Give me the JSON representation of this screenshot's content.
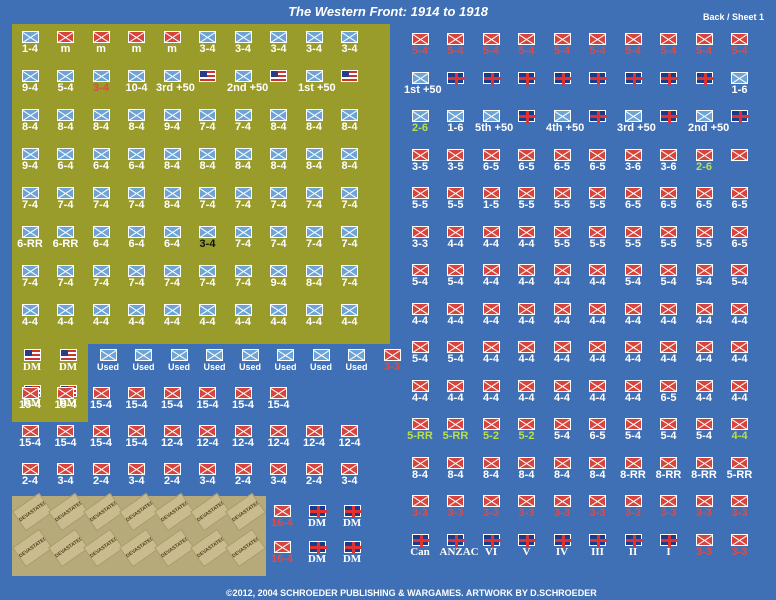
{
  "header": {
    "title": "The Western Front: 1914 to 1918",
    "sheet": "Back / Sheet 1"
  },
  "footer": {
    "credit": "©2012, 2004 SCHROEDER PUBLISHING & WARGAMES.  ARTWORK BY D.SCHROEDER"
  },
  "olive_rows": [
    [
      "1-4",
      "m",
      "m",
      "m",
      "m",
      "3-4",
      "3-4",
      "3-4",
      "3-4",
      "3-4"
    ],
    [
      "9-4",
      "5-4",
      "3-4",
      "10-4",
      "3rd +50",
      "",
      "2nd +50",
      "",
      "1st +50",
      ""
    ],
    [
      "8-4",
      "8-4",
      "8-4",
      "8-4",
      "9-4",
      "7-4",
      "7-4",
      "8-4",
      "8-4",
      "8-4"
    ],
    [
      "9-4",
      "6-4",
      "6-4",
      "6-4",
      "8-4",
      "8-4",
      "8-4",
      "8-4",
      "8-4",
      "8-4"
    ],
    [
      "7-4",
      "7-4",
      "7-4",
      "7-4",
      "8-4",
      "7-4",
      "7-4",
      "7-4",
      "7-4",
      "7-4"
    ],
    [
      "6-RR",
      "6-RR",
      "6-4",
      "6-4",
      "6-4",
      "3-4",
      "7-4",
      "7-4",
      "7-4",
      "7-4"
    ],
    [
      "7-4",
      "7-4",
      "7-4",
      "7-4",
      "7-4",
      "7-4",
      "7-4",
      "9-4",
      "8-4",
      "7-4"
    ],
    [
      "4-4",
      "4-4",
      "4-4",
      "4-4",
      "4-4",
      "4-4",
      "4-4",
      "4-4",
      "4-4",
      "4-4"
    ]
  ],
  "dm_labels": [
    "DM",
    "DM",
    "DM",
    "DM"
  ],
  "used_row": [
    "Used",
    "Used",
    "Used",
    "Used",
    "Used",
    "Used",
    "Used",
    "Used"
  ],
  "mid_rows": [
    [
      "15-4",
      "15-4",
      "15-4",
      "15-4",
      "15-4",
      "15-4",
      "15-4",
      "15-4"
    ],
    [
      "15-4",
      "15-4",
      "15-4",
      "15-4",
      "12-4",
      "12-4",
      "12-4",
      "12-4",
      "12-4",
      "12-4"
    ],
    [
      "2-4",
      "3-4",
      "2-4",
      "3-4",
      "2-4",
      "3-4",
      "2-4",
      "3-4",
      "2-4",
      "3-4"
    ]
  ],
  "devastated_label": "DEVASTATED",
  "bottom_mid": {
    "counter_a": "16-4",
    "counter_b": "16-4",
    "dm": [
      "DM",
      "DM",
      "DM",
      "DM"
    ]
  },
  "blue_rows": [
    [
      "5-4",
      "5-4",
      "5-4",
      "5-4",
      "5-4",
      "5-4",
      "5-4",
      "5-4",
      "5-4",
      "5-4"
    ],
    [
      "1st +50",
      "",
      "",
      "",
      "",
      "",
      "",
      "",
      "",
      "1-6"
    ],
    [
      "2-6",
      "1-6",
      "5th +50",
      "",
      "4th +50",
      "",
      "3rd +50",
      "",
      "2nd +50",
      ""
    ],
    [
      "3-5",
      "3-5",
      "6-5",
      "6-5",
      "6-5",
      "6-5",
      "3-6",
      "3-6",
      "2-6"
    ],
    [
      "5-5",
      "5-5",
      "1-5",
      "5-5",
      "5-5",
      "5-5",
      "6-5",
      "6-5",
      "6-5",
      "6-5"
    ],
    [
      "3-3",
      "4-4",
      "4-4",
      "4-4",
      "5-5",
      "5-5",
      "5-5",
      "5-5",
      "5-5",
      "6-5"
    ],
    [
      "5-4",
      "5-4",
      "4-4",
      "4-4",
      "4-4",
      "4-4",
      "5-4",
      "5-4",
      "5-4",
      "5-4"
    ],
    [
      "4-4",
      "4-4",
      "4-4",
      "4-4",
      "4-4",
      "4-4",
      "4-4",
      "4-4",
      "4-4",
      "4-4"
    ],
    [
      "5-4",
      "5-4",
      "4-4",
      "4-4",
      "4-4",
      "4-4",
      "4-4",
      "4-4",
      "4-4",
      "4-4"
    ],
    [
      "4-4",
      "4-4",
      "4-4",
      "4-4",
      "4-4",
      "4-4",
      "4-4",
      "6-5",
      "4-4",
      "4-4"
    ],
    [
      "5-RR",
      "5-RR",
      "5-2",
      "5-2",
      "5-4",
      "6-5",
      "5-4",
      "5-4",
      "5-4",
      "4-4"
    ],
    [
      "8-4",
      "8-4",
      "8-4",
      "8-4",
      "8-4",
      "8-4",
      "8-RR",
      "8-RR",
      "8-RR",
      "5-RR"
    ],
    [
      "3-3",
      "3-3",
      "3-3",
      "3-3",
      "3-3",
      "3-3",
      "3-3",
      "3-3",
      "3-3",
      "3-3"
    ],
    [
      "Can",
      "ANZAC",
      "VI",
      "V",
      "IV",
      "III",
      "II",
      "I",
      "3-3",
      "3-3"
    ]
  ],
  "colors": {
    "blue": "#3f6fb4",
    "olive": "#999c2a",
    "tan": "#b6a97a",
    "red": "#d7443c"
  }
}
